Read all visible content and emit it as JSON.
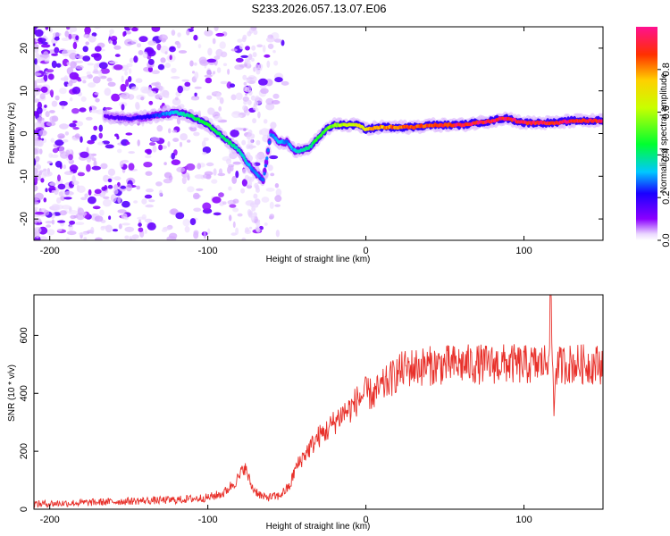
{
  "title": "S233.2026.057.13.07.E06",
  "chart_data": [
    {
      "type": "heatmap",
      "name": "spectrogram",
      "xlabel": "Height of straight line (km)",
      "ylabel": "Frequency (Hz)",
      "xlim": [
        -210,
        150
      ],
      "ylim": [
        -25,
        25
      ],
      "xticks": [
        -200,
        -100,
        0,
        100
      ],
      "yticks": [
        -20,
        -10,
        0,
        10,
        20
      ],
      "colorbar": {
        "label": "Normalized spectral amplitude",
        "range": [
          0,
          1
        ],
        "ticks": [
          0.0,
          0.2,
          0.4,
          0.6,
          0.8
        ],
        "tick_labels": [
          "0.0",
          "0.2",
          "0.4",
          "0.6",
          "0.8"
        ]
      },
      "ridge": {
        "x": [
          -165,
          -150,
          -135,
          -120,
          -110,
          -100,
          -90,
          -80,
          -75,
          -70,
          -65,
          -60,
          -55,
          -50,
          -45,
          -40,
          -35,
          -30,
          -25,
          -20,
          -15,
          -10,
          -5,
          0,
          10,
          20,
          30,
          40,
          50,
          60,
          70,
          80,
          85,
          90,
          95,
          100,
          110,
          115,
          120,
          130,
          140,
          150
        ],
        "y": [
          4,
          3.5,
          4,
          5,
          4,
          2,
          -1,
          -4,
          -7,
          -9,
          -11,
          0,
          -2,
          -2,
          -4,
          -4,
          -3,
          -1,
          1,
          2,
          2,
          2,
          2,
          1,
          1.5,
          1.5,
          1.5,
          2,
          2,
          2,
          2.5,
          3,
          3.5,
          3.5,
          3,
          2.5,
          2.5,
          2.5,
          2.5,
          3,
          3,
          3
        ],
        "amplitude": [
          0.15,
          0.2,
          0.25,
          0.35,
          0.45,
          0.5,
          0.45,
          0.4,
          0.35,
          0.3,
          0.3,
          0.3,
          0.35,
          0.3,
          0.35,
          0.4,
          0.45,
          0.5,
          0.55,
          0.6,
          0.65,
          0.7,
          0.7,
          0.8,
          0.85,
          0.9,
          0.95,
          0.95,
          0.95,
          1.0,
          1.0,
          1.0,
          1.0,
          1.0,
          1.0,
          1.0,
          1.0,
          1.0,
          1.0,
          1.0,
          1.0,
          1.0
        ]
      }
    },
    {
      "type": "line",
      "name": "snr",
      "xlabel": "Height of straight line (km)",
      "ylabel": "SNR (10 * v/v)",
      "xlim": [
        -210,
        150
      ],
      "ylim": [
        0,
        740
      ],
      "xticks": [
        -200,
        -100,
        0,
        100
      ],
      "yticks": [
        0,
        200,
        400,
        600
      ],
      "color": "#e8302a",
      "series": [
        {
          "name": "SNR",
          "x": [
            -210,
            -180,
            -150,
            -120,
            -100,
            -90,
            -80,
            -77,
            -72,
            -65,
            -55,
            -48,
            -45,
            -40,
            -35,
            -30,
            -25,
            -20,
            -15,
            -10,
            -5,
            0,
            5,
            10,
            15,
            20,
            25,
            30,
            40,
            50,
            60,
            70,
            80,
            90,
            100,
            110,
            115,
            117,
            119,
            120,
            125,
            130,
            140,
            150
          ],
          "y": [
            18,
            22,
            28,
            32,
            40,
            55,
            110,
            150,
            75,
            40,
            45,
            80,
            135,
            180,
            215,
            250,
            270,
            300,
            330,
            345,
            380,
            400,
            395,
            420,
            445,
            470,
            485,
            490,
            495,
            498,
            500,
            500,
            500,
            502,
            498,
            500,
            510,
            720,
            330,
            490,
            500,
            502,
            500,
            500
          ]
        }
      ]
    }
  ]
}
